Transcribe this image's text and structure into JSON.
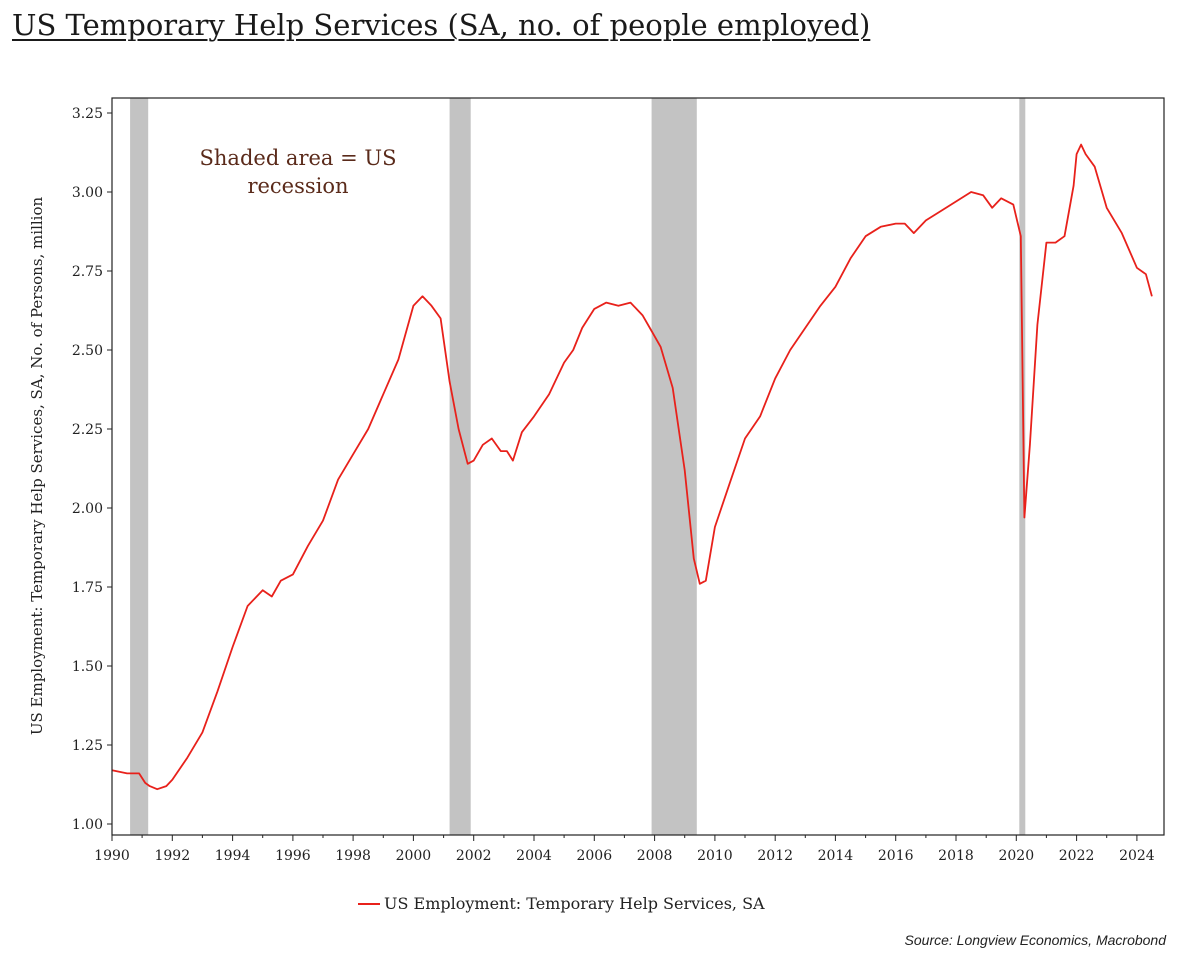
{
  "title": "US Temporary Help Services (SA, no. of people employed)",
  "source": "Source: Longview Economics, Macrobond",
  "chart_data": {
    "type": "line",
    "title": "US Temporary Help Services (SA, no. of people employed)",
    "xlabel": "",
    "ylabel": "US Employment: Temporary Help Services, SA, No. of Persons, million",
    "xlim": [
      1990,
      2024.9
    ],
    "ylim": [
      1.0,
      3.25
    ],
    "x_ticks": [
      "1990",
      "1992",
      "1994",
      "1996",
      "1998",
      "2000",
      "2002",
      "2004",
      "2006",
      "2008",
      "2010",
      "2012",
      "2014",
      "2016",
      "2018",
      "2020",
      "2022",
      "2024"
    ],
    "y_ticks": [
      "1.00",
      "1.25",
      "1.50",
      "1.75",
      "2.00",
      "2.25",
      "2.50",
      "2.75",
      "3.00",
      "3.25"
    ],
    "grid": false,
    "legend_position": "bottom",
    "annotation": [
      "Shaded area = US",
      "recession"
    ],
    "recessions": [
      {
        "start": 1990.6,
        "end": 1991.2
      },
      {
        "start": 2001.2,
        "end": 2001.9
      },
      {
        "start": 2007.9,
        "end": 2009.4
      },
      {
        "start": 2020.1,
        "end": 2020.3
      }
    ],
    "series": [
      {
        "name": "US Employment: Temporary Help Services, SA",
        "color": "#e8211b",
        "x": [
          1990.0,
          1990.5,
          1990.9,
          1991.1,
          1991.25,
          1991.5,
          1991.8,
          1992.0,
          1992.5,
          1993.0,
          1993.5,
          1994.0,
          1994.5,
          1995.0,
          1995.3,
          1995.6,
          1996.0,
          1996.5,
          1997.0,
          1997.5,
          1998.0,
          1998.5,
          1999.0,
          1999.5,
          2000.0,
          2000.3,
          2000.6,
          2000.9,
          2001.2,
          2001.5,
          2001.8,
          2002.0,
          2002.3,
          2002.6,
          2002.9,
          2003.1,
          2003.3,
          2003.6,
          2004.0,
          2004.5,
          2005.0,
          2005.3,
          2005.6,
          2006.0,
          2006.4,
          2006.8,
          2007.2,
          2007.6,
          2007.9,
          2008.2,
          2008.6,
          2009.0,
          2009.3,
          2009.5,
          2009.7,
          2010.0,
          2010.5,
          2011.0,
          2011.5,
          2012.0,
          2012.5,
          2013.0,
          2013.5,
          2014.0,
          2014.5,
          2015.0,
          2015.5,
          2016.0,
          2016.3,
          2016.6,
          2017.0,
          2017.5,
          2018.0,
          2018.5,
          2018.9,
          2019.2,
          2019.5,
          2019.9,
          2020.15,
          2020.27,
          2020.45,
          2020.7,
          2021.0,
          2021.3,
          2021.6,
          2021.9,
          2022.0,
          2022.15,
          2022.3,
          2022.6,
          2023.0,
          2023.5,
          2024.0,
          2024.3,
          2024.5
        ],
        "values": [
          1.17,
          1.16,
          1.16,
          1.13,
          1.12,
          1.11,
          1.12,
          1.14,
          1.21,
          1.29,
          1.42,
          1.56,
          1.69,
          1.74,
          1.72,
          1.77,
          1.79,
          1.88,
          1.96,
          2.09,
          2.17,
          2.25,
          2.36,
          2.47,
          2.64,
          2.67,
          2.64,
          2.6,
          2.4,
          2.25,
          2.14,
          2.15,
          2.2,
          2.22,
          2.18,
          2.18,
          2.15,
          2.24,
          2.29,
          2.36,
          2.46,
          2.5,
          2.57,
          2.63,
          2.65,
          2.64,
          2.65,
          2.61,
          2.56,
          2.51,
          2.38,
          2.12,
          1.84,
          1.76,
          1.77,
          1.94,
          2.08,
          2.22,
          2.29,
          2.41,
          2.5,
          2.57,
          2.64,
          2.7,
          2.79,
          2.86,
          2.89,
          2.9,
          2.9,
          2.87,
          2.91,
          2.94,
          2.97,
          3.0,
          2.99,
          2.95,
          2.98,
          2.96,
          2.86,
          1.97,
          2.2,
          2.58,
          2.84,
          2.84,
          2.86,
          3.02,
          3.12,
          3.15,
          3.12,
          3.08,
          2.95,
          2.87,
          2.76,
          2.74,
          2.67
        ]
      }
    ]
  }
}
